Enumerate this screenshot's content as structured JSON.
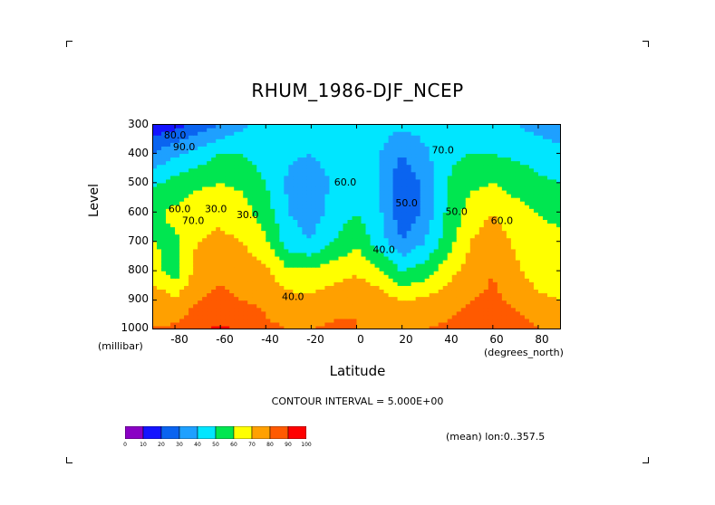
{
  "chart_data": {
    "type": "heatmap",
    "subtype": "filled-contour",
    "title": "RHUM_1986-DJF_NCEP",
    "xlabel": "Latitude",
    "ylabel": "Level",
    "x_unit": "(degrees_north)",
    "y_unit": "(millibar)",
    "xlim": [
      -90,
      90
    ],
    "ylim": [
      1000,
      300
    ],
    "x_ticks": [
      "-80",
      "-60",
      "-40",
      "-20",
      "0",
      "20",
      "40",
      "60",
      "80"
    ],
    "y_ticks": [
      "300",
      "400",
      "500",
      "600",
      "700",
      "800",
      "900",
      "1000"
    ],
    "contour_interval_text": "CONTOUR INTERVAL = 5.000E+00",
    "note": "(mean) lon:0..357.5",
    "contour_labels": [
      "40.0",
      "30.0",
      "40.0",
      "50.0",
      "60.0",
      "70.0",
      "30.0",
      "80.0",
      "60.0",
      "70.0",
      "60.0",
      "50.0",
      "90.0"
    ],
    "colorbar": {
      "labels": [
        "0",
        "10",
        "20",
        "30",
        "40",
        "50",
        "60",
        "70",
        "80",
        "90",
        "100"
      ],
      "colors": [
        "#8a00c4",
        "#1414ff",
        "#0a64f0",
        "#1ea0ff",
        "#00e6ff",
        "#00e650",
        "#ffff00",
        "#ffa000",
        "#ff5a00",
        "#ff0000"
      ]
    },
    "latitudes": [
      -90,
      -80,
      -70,
      -60,
      -50,
      -40,
      -30,
      -20,
      -10,
      0,
      10,
      20,
      30,
      40,
      50,
      60,
      70,
      80,
      90
    ],
    "levels": [
      1000,
      900,
      800,
      700,
      600,
      500,
      400,
      300
    ],
    "values": [
      [
        80,
        82,
        88,
        92,
        88,
        82,
        80,
        80,
        82,
        80,
        78,
        78,
        80,
        82,
        85,
        88,
        85,
        80,
        78
      ],
      [
        78,
        72,
        80,
        82,
        80,
        78,
        74,
        72,
        76,
        80,
        76,
        70,
        72,
        76,
        80,
        82,
        78,
        72,
        70
      ],
      [
        65,
        55,
        75,
        78,
        76,
        72,
        62,
        62,
        66,
        68,
        62,
        50,
        55,
        66,
        74,
        80,
        72,
        65,
        65
      ],
      [
        60,
        58,
        70,
        72,
        70,
        62,
        45,
        40,
        50,
        58,
        45,
        30,
        40,
        55,
        70,
        76,
        68,
        62,
        62
      ],
      [
        58,
        62,
        66,
        68,
        64,
        55,
        40,
        35,
        44,
        50,
        42,
        22,
        32,
        52,
        64,
        70,
        64,
        60,
        58
      ],
      [
        48,
        54,
        58,
        60,
        58,
        50,
        38,
        32,
        42,
        48,
        40,
        22,
        32,
        50,
        58,
        60,
        56,
        52,
        50
      ],
      [
        30,
        38,
        44,
        50,
        50,
        45,
        42,
        40,
        45,
        46,
        40,
        30,
        38,
        48,
        50,
        50,
        48,
        46,
        44
      ],
      [
        12,
        16,
        24,
        30,
        38,
        44,
        48,
        45,
        50,
        46,
        45,
        42,
        44,
        45,
        44,
        42,
        40,
        36,
        32
      ]
    ]
  }
}
